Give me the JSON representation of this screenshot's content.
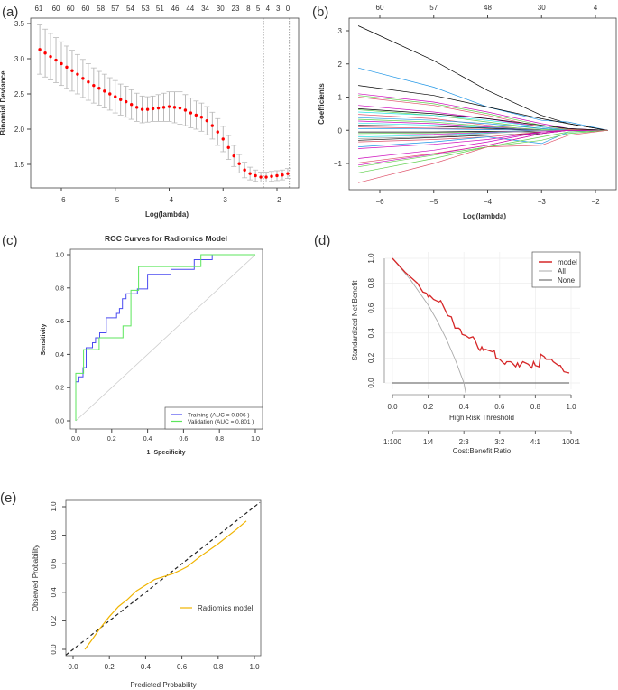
{
  "palette": {
    "black": "#000000",
    "red": "#DF536B",
    "green": "#61D04F",
    "blue": "#2297E6",
    "cyan": "#28E2E5",
    "magenta": "#CD0BBC",
    "yellow": "#F5C710",
    "gray": "#9E9E9E"
  },
  "chart_data": [
    {
      "panel": "(a)",
      "type": "scatter",
      "xlabel": "Log(lambda)",
      "ylabel": "Binomial Deviance",
      "xticks": [
        -6,
        -5,
        -4,
        -3,
        -2
      ],
      "yticks": [
        1.5,
        2.0,
        2.5,
        3.0,
        3.5
      ],
      "top_axis": [
        {
          "lambda": -6.42,
          "label": "61"
        },
        {
          "lambda": -6.1,
          "label": "60"
        },
        {
          "lambda": -5.83,
          "label": "60"
        },
        {
          "lambda": -5.55,
          "label": "60"
        },
        {
          "lambda": -5.27,
          "label": "58"
        },
        {
          "lambda": -5.0,
          "label": "57"
        },
        {
          "lambda": -4.72,
          "label": "54"
        },
        {
          "lambda": -4.44,
          "label": "53"
        },
        {
          "lambda": -4.17,
          "label": "51"
        },
        {
          "lambda": -3.89,
          "label": "46"
        },
        {
          "lambda": -3.61,
          "label": "44"
        },
        {
          "lambda": -3.33,
          "label": "34"
        },
        {
          "lambda": -3.05,
          "label": "30"
        },
        {
          "lambda": -2.77,
          "label": "23"
        },
        {
          "lambda": -2.53,
          "label": "8"
        },
        {
          "lambda": -2.35,
          "label": "5"
        },
        {
          "lambda": -2.17,
          "label": "4"
        },
        {
          "lambda": -1.98,
          "label": "3"
        },
        {
          "lambda": -1.8,
          "label": "0"
        }
      ],
      "vlines": [
        -2.25,
        -1.77
      ],
      "point_color": "#FF0000",
      "x": [
        -6.4,
        -6.3,
        -6.2,
        -6.1,
        -6.0,
        -5.9,
        -5.8,
        -5.7,
        -5.6,
        -5.5,
        -5.4,
        -5.3,
        -5.2,
        -5.1,
        -5.0,
        -4.9,
        -4.8,
        -4.7,
        -4.6,
        -4.5,
        -4.4,
        -4.3,
        -4.2,
        -4.1,
        -4.0,
        -3.9,
        -3.8,
        -3.7,
        -3.6,
        -3.5,
        -3.4,
        -3.3,
        -3.2,
        -3.1,
        -3.0,
        -2.9,
        -2.8,
        -2.7,
        -2.6,
        -2.5,
        -2.4,
        -2.3,
        -2.2,
        -2.1,
        -2.0,
        -1.9,
        -1.8
      ],
      "y": [
        3.13,
        3.08,
        3.03,
        2.98,
        2.93,
        2.88,
        2.83,
        2.78,
        2.72,
        2.67,
        2.62,
        2.58,
        2.54,
        2.5,
        2.46,
        2.42,
        2.39,
        2.35,
        2.31,
        2.28,
        2.28,
        2.29,
        2.3,
        2.31,
        2.32,
        2.31,
        2.3,
        2.27,
        2.23,
        2.2,
        2.17,
        2.12,
        2.05,
        1.96,
        1.86,
        1.74,
        1.62,
        1.51,
        1.42,
        1.37,
        1.34,
        1.32,
        1.32,
        1.33,
        1.34,
        1.35,
        1.37
      ],
      "se": [
        0.35,
        0.34,
        0.33,
        0.32,
        0.31,
        0.3,
        0.29,
        0.28,
        0.27,
        0.26,
        0.25,
        0.24,
        0.24,
        0.23,
        0.23,
        0.22,
        0.22,
        0.21,
        0.2,
        0.19,
        0.18,
        0.18,
        0.19,
        0.2,
        0.21,
        0.22,
        0.23,
        0.22,
        0.21,
        0.2,
        0.2,
        0.2,
        0.19,
        0.19,
        0.18,
        0.17,
        0.15,
        0.13,
        0.11,
        0.09,
        0.08,
        0.07,
        0.07,
        0.07,
        0.07,
        0.07,
        0.07
      ]
    },
    {
      "panel": "(b)",
      "type": "line",
      "xlabel": "Log(lambda)",
      "ylabel": "Coefficients",
      "xticks": [
        -6,
        -5,
        -4,
        -3,
        -2
      ],
      "yticks": [
        -1,
        0,
        1,
        2,
        3
      ],
      "top_axis": [
        {
          "lambda": -6,
          "label": "60"
        },
        {
          "lambda": -5,
          "label": "57"
        },
        {
          "lambda": -4,
          "label": "48"
        },
        {
          "lambda": -3,
          "label": "30"
        },
        {
          "lambda": -2,
          "label": "4"
        }
      ],
      "x": [
        -6.4,
        -5,
        -4,
        -3,
        -2.5,
        -1.77
      ],
      "series": [
        {
          "color": "black",
          "values": [
            3.15,
            2.1,
            1.2,
            0.45,
            0.2,
            0
          ]
        },
        {
          "color": "blue",
          "values": [
            1.88,
            1.3,
            0.7,
            0.3,
            0.25,
            0
          ]
        },
        {
          "color": "black",
          "values": [
            1.35,
            1.05,
            0.7,
            0.35,
            0.2,
            0
          ]
        },
        {
          "color": "magenta",
          "values": [
            1.1,
            0.85,
            0.55,
            0.2,
            0.05,
            0
          ]
        },
        {
          "color": "green",
          "values": [
            1.05,
            0.8,
            0.5,
            0.15,
            0.03,
            0
          ]
        },
        {
          "color": "red",
          "values": [
            1.0,
            0.75,
            0.45,
            0.1,
            0.02,
            0
          ]
        },
        {
          "color": "magenta",
          "values": [
            0.75,
            0.55,
            0.35,
            0.1,
            0,
            0
          ]
        },
        {
          "color": "black",
          "values": [
            0.65,
            0.5,
            0.35,
            0.15,
            0.05,
            0
          ]
        },
        {
          "color": "green",
          "values": [
            0.62,
            0.45,
            0.25,
            0.05,
            0,
            0
          ]
        },
        {
          "color": "cyan",
          "values": [
            0.55,
            0.45,
            0.3,
            0.1,
            0,
            0
          ]
        },
        {
          "color": "red",
          "values": [
            0.48,
            0.35,
            0.15,
            0,
            0,
            0
          ]
        },
        {
          "color": "blue",
          "values": [
            0.38,
            0.3,
            0.2,
            0.05,
            0,
            0
          ]
        },
        {
          "color": "green",
          "values": [
            0.33,
            0.25,
            0.12,
            0.02,
            0,
            0
          ]
        },
        {
          "color": "magenta",
          "values": [
            0.28,
            0.2,
            0.1,
            0,
            0,
            0
          ]
        },
        {
          "color": "cyan",
          "values": [
            0.22,
            0.15,
            0.08,
            0,
            0,
            0
          ]
        },
        {
          "color": "black",
          "values": [
            0.15,
            0.12,
            0.06,
            0,
            0,
            0
          ]
        },
        {
          "color": "red",
          "values": [
            0.1,
            0.06,
            0.03,
            0,
            0,
            0
          ]
        },
        {
          "color": "blue",
          "values": [
            0.05,
            0.04,
            0.02,
            0,
            0,
            0
          ]
        },
        {
          "color": "black",
          "values": [
            -0.05,
            -0.05,
            -0.03,
            -0.05,
            0,
            0
          ]
        },
        {
          "color": "green",
          "values": [
            -0.1,
            -0.08,
            -0.05,
            0,
            0,
            0
          ]
        },
        {
          "color": "magenta",
          "values": [
            -0.15,
            -0.12,
            -0.06,
            0,
            0,
            0
          ]
        },
        {
          "color": "cyan",
          "values": [
            -0.2,
            -0.15,
            -0.08,
            0,
            0,
            0
          ]
        },
        {
          "color": "gray",
          "values": [
            -0.25,
            -0.2,
            -0.1,
            0,
            0,
            0
          ]
        },
        {
          "color": "black",
          "values": [
            -0.3,
            -0.22,
            -0.15,
            -0.1,
            0,
            0
          ]
        },
        {
          "color": "red",
          "values": [
            -0.35,
            -0.28,
            -0.2,
            -0.05,
            0,
            0
          ]
        },
        {
          "color": "blue",
          "values": [
            -0.5,
            -0.35,
            -0.2,
            -0.4,
            -0.05,
            0
          ]
        },
        {
          "color": "magenta",
          "values": [
            -0.55,
            -0.42,
            -0.28,
            -0.05,
            0,
            0
          ]
        },
        {
          "color": "magenta",
          "values": [
            -0.85,
            -0.6,
            -0.35,
            -0.05,
            0,
            0
          ]
        },
        {
          "color": "red",
          "values": [
            -0.98,
            -0.7,
            -0.45,
            -0.1,
            0,
            0
          ]
        },
        {
          "color": "magenta",
          "values": [
            -1.05,
            -0.72,
            -0.45,
            -0.1,
            0,
            0
          ]
        },
        {
          "color": "green",
          "values": [
            -1.1,
            -0.75,
            -0.5,
            -0.2,
            -0.05,
            0
          ]
        },
        {
          "color": "green",
          "values": [
            -1.28,
            -0.85,
            -0.5,
            -0.3,
            -0.1,
            0
          ]
        },
        {
          "color": "red",
          "values": [
            -1.58,
            -1.0,
            -0.5,
            -0.45,
            -0.15,
            0
          ]
        }
      ]
    },
    {
      "panel": "(c)",
      "type": "line",
      "title": "ROC Curves for Radiomics Model",
      "xlabel": "1−Specificity",
      "ylabel": "Sensitivity",
      "xticks": [
        "0.0",
        "0.2",
        "0.4",
        "0.6",
        "0.8",
        "1.0"
      ],
      "yticks": [
        "0.0",
        "0.2",
        "0.4",
        "0.6",
        "0.8",
        "1.0"
      ],
      "legend_position": "bottom-right",
      "series": [
        {
          "name": "Training (AUC = 0.806 )",
          "color": "#4B4BF0",
          "x": [
            0,
            0,
            0.017,
            0.017,
            0.04,
            0.04,
            0.058,
            0.058,
            0.093,
            0.093,
            0.11,
            0.11,
            0.133,
            0.133,
            0.17,
            0.17,
            0.227,
            0.227,
            0.243,
            0.243,
            0.26,
            0.26,
            0.28,
            0.28,
            0.343,
            0.343,
            0.4,
            0.4,
            0.53,
            0.53,
            0.66,
            0.66,
            0.76,
            0.76,
            1
          ],
          "y": [
            0,
            0.235,
            0.235,
            0.265,
            0.265,
            0.32,
            0.32,
            0.44,
            0.44,
            0.47,
            0.47,
            0.5,
            0.5,
            0.53,
            0.53,
            0.62,
            0.62,
            0.647,
            0.647,
            0.676,
            0.676,
            0.735,
            0.735,
            0.765,
            0.765,
            0.794,
            0.794,
            0.882,
            0.882,
            0.912,
            0.912,
            0.97,
            0.97,
            1,
            1
          ]
        },
        {
          "name": "Validation (AUC = 0.801 )",
          "color": "#5CE65C",
          "x": [
            0,
            0,
            0.043,
            0.043,
            0.13,
            0.13,
            0.263,
            0.263,
            0.307,
            0.307,
            0.35,
            0.35,
            0.697,
            0.697,
            1
          ],
          "y": [
            0,
            0.286,
            0.286,
            0.429,
            0.429,
            0.5,
            0.5,
            0.571,
            0.571,
            0.786,
            0.786,
            0.929,
            0.929,
            1,
            1
          ]
        }
      ]
    },
    {
      "panel": "(d)",
      "type": "line",
      "xlabel": "High Risk Threshold",
      "ylabel": "Standardized Net Benefit",
      "xticks": [
        "0.0",
        "0.2",
        "0.4",
        "0.6",
        "0.8",
        "1.0"
      ],
      "yticks": [
        "0.0",
        "0.2",
        "0.4",
        "0.6",
        "0.8",
        "1.0"
      ],
      "cost_benefit_label": "Cost:Benefit Ratio",
      "cost_benefit_ticks": [
        {
          "t": 0.01,
          "label": "1:100"
        },
        {
          "t": 0.2,
          "label": "1:4"
        },
        {
          "t": 0.4,
          "label": "2:3"
        },
        {
          "t": 0.6,
          "label": "3:2"
        },
        {
          "t": 0.8,
          "label": "4:1"
        },
        {
          "t": 0.99,
          "label": "100:1"
        }
      ],
      "legend_position": "top-right",
      "series": [
        {
          "name": "model",
          "color": "#D62728",
          "x": [
            0,
            0.07,
            0.14,
            0.17,
            0.19,
            0.2,
            0.21,
            0.23,
            0.26,
            0.27,
            0.29,
            0.31,
            0.33,
            0.35,
            0.37,
            0.38,
            0.39,
            0.41,
            0.43,
            0.45,
            0.46,
            0.48,
            0.49,
            0.5,
            0.51,
            0.52,
            0.56,
            0.57,
            0.58,
            0.6,
            0.62,
            0.63,
            0.64,
            0.66,
            0.67,
            0.69,
            0.7,
            0.71,
            0.73,
            0.76,
            0.78,
            0.79,
            0.8,
            0.82,
            0.83,
            0.85,
            0.86,
            0.89,
            0.9,
            0.93,
            0.94,
            0.96,
            0.99
          ],
          "y": [
            1.0,
            0.89,
            0.8,
            0.73,
            0.72,
            0.69,
            0.7,
            0.67,
            0.65,
            0.66,
            0.6,
            0.54,
            0.53,
            0.44,
            0.44,
            0.43,
            0.39,
            0.38,
            0.36,
            0.37,
            0.35,
            0.28,
            0.26,
            0.29,
            0.26,
            0.27,
            0.25,
            0.26,
            0.2,
            0.19,
            0.16,
            0.15,
            0.17,
            0.17,
            0.16,
            0.13,
            0.16,
            0.13,
            0.17,
            0.15,
            0.12,
            0.17,
            0.14,
            0.13,
            0.23,
            0.21,
            0.19,
            0.19,
            0.17,
            0.14,
            0.14,
            0.09,
            0.08
          ]
        },
        {
          "name": "All",
          "color": "#AAAAAA",
          "x": [
            0,
            0.1,
            0.2,
            0.25,
            0.3,
            0.35,
            0.4,
            0.41
          ],
          "y": [
            1,
            0.83,
            0.625,
            0.5,
            0.357,
            0.192,
            0,
            -0.08
          ]
        },
        {
          "name": "None",
          "color": "#555555",
          "x": [
            0,
            0.99
          ],
          "y": [
            0,
            0
          ]
        }
      ]
    },
    {
      "panel": "(e)",
      "type": "line",
      "xlabel": "Predicted Probability",
      "ylabel": "Observed Probability",
      "xticks": [
        "0.0",
        "0.2",
        "0.4",
        "0.6",
        "0.8",
        "1.0"
      ],
      "yticks": [
        "0.0",
        "0.2",
        "0.4",
        "0.6",
        "0.8",
        "1.0"
      ],
      "legend_position": "center-right",
      "reference_line": "dashed diagonal",
      "series": [
        {
          "name": "Radiomics model",
          "color": "#F0B400",
          "x": [
            0.065,
            0.1,
            0.15,
            0.2,
            0.25,
            0.3,
            0.35,
            0.4,
            0.45,
            0.5,
            0.55,
            0.6,
            0.63,
            0.7,
            0.8,
            0.9,
            0.955
          ],
          "y": [
            0,
            0.06,
            0.15,
            0.23,
            0.3,
            0.35,
            0.41,
            0.45,
            0.49,
            0.51,
            0.53,
            0.56,
            0.58,
            0.65,
            0.74,
            0.84,
            0.9
          ]
        }
      ]
    }
  ]
}
